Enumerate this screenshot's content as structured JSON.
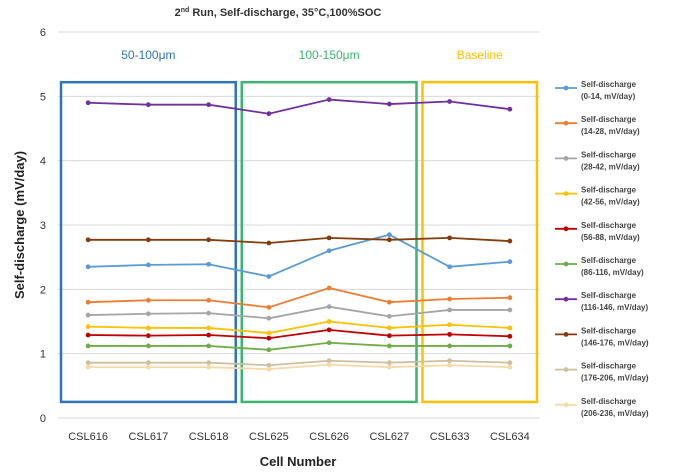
{
  "chart_data": {
    "type": "line",
    "title": {
      "prefix": "2",
      "sup": "nd",
      "rest": " Run, Self-discharge, 35°C,100%SOC"
    },
    "xlabel": "Cell Number",
    "ylabel": "Self-discharge (mV/day)",
    "ylim": [
      0,
      6
    ],
    "yticks": [
      0,
      1,
      2,
      3,
      4,
      5,
      6
    ],
    "grid": true,
    "legend_position": "right",
    "categories": [
      "CSL616",
      "CSL617",
      "CSL618",
      "CSL625",
      "CSL626",
      "CSL627",
      "CSL633",
      "CSL634"
    ],
    "series": [
      {
        "name": [
          "Self-discharge",
          "(0-14, mV/day)"
        ],
        "color": "#5b9bd5",
        "values": [
          2.35,
          2.38,
          2.39,
          2.2,
          2.6,
          2.85,
          2.35,
          2.43
        ]
      },
      {
        "name": [
          "Self-discharge",
          "(14-28, mV/day)"
        ],
        "color": "#ed7d31",
        "values": [
          1.8,
          1.83,
          1.83,
          1.72,
          2.02,
          1.8,
          1.85,
          1.87
        ]
      },
      {
        "name": [
          "Self-discharge",
          "(28-42, mV/day)"
        ],
        "color": "#a5a5a5",
        "values": [
          1.6,
          1.62,
          1.63,
          1.55,
          1.73,
          1.58,
          1.68,
          1.68
        ]
      },
      {
        "name": [
          "Self-discharge",
          "(42-56, mV/day)"
        ],
        "color": "#ffc000",
        "values": [
          1.42,
          1.4,
          1.4,
          1.32,
          1.5,
          1.4,
          1.45,
          1.4
        ]
      },
      {
        "name": [
          "Self-discharge",
          "(56-88, mV/day)"
        ],
        "color": "#c00000",
        "values": [
          1.29,
          1.28,
          1.29,
          1.24,
          1.37,
          1.28,
          1.3,
          1.27
        ]
      },
      {
        "name": [
          "Self-discharge",
          "(86-116, mV/day)"
        ],
        "color": "#70ad47",
        "values": [
          1.12,
          1.12,
          1.12,
          1.06,
          1.17,
          1.12,
          1.12,
          1.12
        ]
      },
      {
        "name": [
          "Self-discharge",
          "(116-146, mV/day)"
        ],
        "color": "#7030a0",
        "values": [
          4.9,
          4.87,
          4.87,
          4.73,
          4.95,
          4.88,
          4.92,
          4.8
        ]
      },
      {
        "name": [
          "Self-discharge",
          "(146-176, mV/day)"
        ],
        "color": "#843c0c",
        "values": [
          2.77,
          2.77,
          2.77,
          2.72,
          2.8,
          2.77,
          2.8,
          2.75
        ]
      },
      {
        "name": [
          "Self-discharge",
          "(176-206, mV/day)"
        ],
        "color": "#cdbf9f",
        "values": [
          0.86,
          0.86,
          0.86,
          0.82,
          0.89,
          0.86,
          0.89,
          0.86
        ]
      },
      {
        "name": [
          "Self-discharge",
          "(206-236, mV/day)"
        ],
        "color": "#f7d9a8",
        "values": [
          0.79,
          0.79,
          0.79,
          0.76,
          0.83,
          0.79,
          0.82,
          0.79
        ]
      }
    ],
    "annotations": [
      {
        "label": "50-100μm",
        "color": "#2e75b6",
        "from": "CSL616",
        "to": "CSL618"
      },
      {
        "label": "100-150μm",
        "color": "#3cb371",
        "from": "CSL625",
        "to": "CSL627"
      },
      {
        "label": "Baseline",
        "color": "#ffc000",
        "from": "CSL633",
        "to": "CSL634"
      }
    ]
  }
}
